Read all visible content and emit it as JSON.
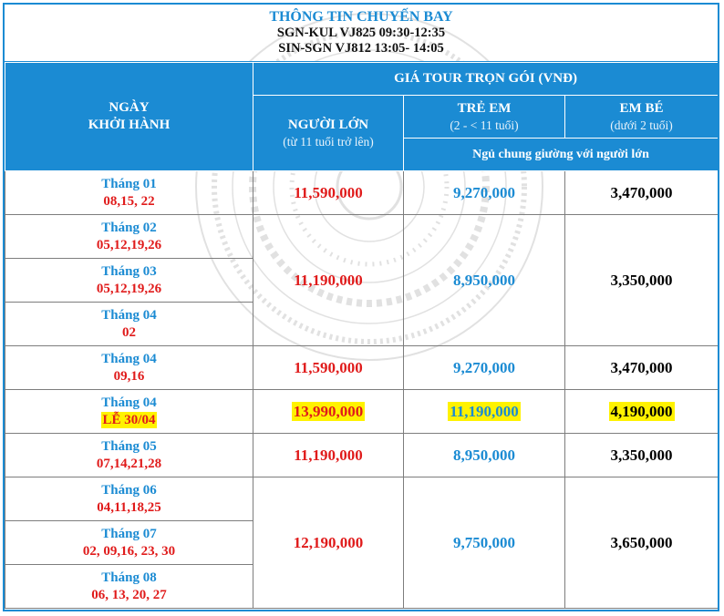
{
  "flight_info": {
    "title": "THÔNG TIN CHUYẾN BAY",
    "line1": "SGN-KUL VJ825 09:30-12:35",
    "line2": "SIN-SGN VJ812 13:05- 14:05"
  },
  "header": {
    "departure_line1": "NGÀY",
    "departure_line2": "KHỞI HÀNH",
    "package_price": "GIÁ TOUR TRỌN GÓI (VNĐ)",
    "adult": "NGƯỜI LỚN",
    "adult_sub": "(từ 11 tuổi trở lên)",
    "child": "TRẺ EM",
    "child_sub": "(2 - < 11 tuổi)",
    "baby": "EM BÉ",
    "baby_sub": "(dưới 2 tuổi)",
    "shared_bed": "Ngủ chung giường với người lớn"
  },
  "rows": [
    {
      "month": "Tháng 01",
      "dates": "08,15, 22"
    },
    {
      "month": "Tháng 02",
      "dates": "05,12,19,26"
    },
    {
      "month": "Tháng 03",
      "dates": "05,12,19,26"
    },
    {
      "month": "Tháng 04",
      "dates": "02"
    },
    {
      "month": "Tháng 04",
      "dates": "09,16"
    },
    {
      "month": "Tháng 04",
      "dates": "LỄ 30/04"
    },
    {
      "month": "Tháng 05",
      "dates": "07,14,21,28"
    },
    {
      "month": "Tháng 06",
      "dates": "04,11,18,25"
    },
    {
      "month": "Tháng 07",
      "dates": "02, 09,16, 23, 30"
    },
    {
      "month": "Tháng 08",
      "dates": "06, 13, 20, 27"
    }
  ],
  "prices": [
    {
      "adult": "11,590,000",
      "child": "9,270,000",
      "baby": "3,470,000"
    },
    {
      "adult": "11,190,000",
      "child": "8,950,000",
      "baby": "3,350,000"
    },
    {
      "adult": "11,590,000",
      "child": "9,270,000",
      "baby": "3,470,000"
    },
    {
      "adult": "13,990,000",
      "child": "11,190,000",
      "baby": "4,190,000"
    },
    {
      "adult": "11,190,000",
      "child": "8,950,000",
      "baby": "3,350,000"
    },
    {
      "adult": "12,190,000",
      "child": "9,750,000",
      "baby": "3,650,000"
    }
  ],
  "colors": {
    "accent_blue": "#1b8bd3",
    "date_red": "#e01b1b",
    "highlight_yellow": "#fff200"
  }
}
